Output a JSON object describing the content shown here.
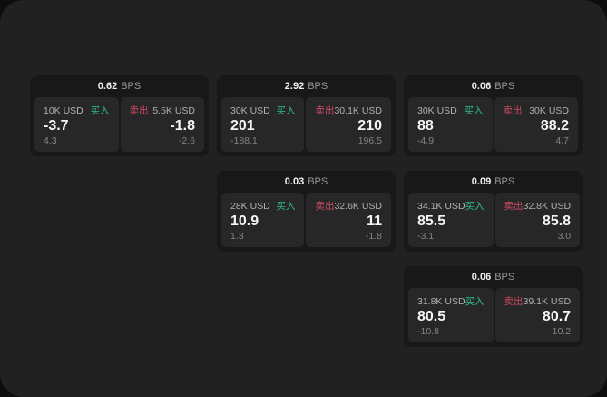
{
  "labels": {
    "unit": "BPS",
    "buy": "买入",
    "sell": "卖出"
  },
  "colors": {
    "buy_green": "#2ebd85",
    "sell_red": "#cf4b63",
    "panel_bg": "#212121",
    "card_bg": "#181818",
    "tile_bg": "#272727"
  },
  "cards": [
    {
      "bps": "0.62",
      "buy": {
        "amount": "10K USD",
        "value": "-3.7",
        "sub": "4.3"
      },
      "sell": {
        "amount": "5.5K USD",
        "value": "-1.8",
        "sub": "-2.6"
      }
    },
    {
      "bps": "2.92",
      "buy": {
        "amount": "30K USD",
        "value": "201",
        "sub": "-188.1"
      },
      "sell": {
        "amount": "30.1K USD",
        "value": "210",
        "sub": "196.5"
      }
    },
    {
      "bps": "0.06",
      "buy": {
        "amount": "30K USD",
        "value": "88",
        "sub": "-4.9"
      },
      "sell": {
        "amount": "30K USD",
        "value": "88.2",
        "sub": "4.7"
      }
    },
    {
      "bps": "0.03",
      "buy": {
        "amount": "28K USD",
        "value": "10.9",
        "sub": "1.3"
      },
      "sell": {
        "amount": "32.6K USD",
        "value": "11",
        "sub": "-1.8"
      }
    },
    {
      "bps": "0.09",
      "buy": {
        "amount": "34.1K USD",
        "value": "85.5",
        "sub": "-3.1"
      },
      "sell": {
        "amount": "32.8K USD",
        "value": "85.8",
        "sub": "3.0"
      }
    },
    {
      "bps": "0.06",
      "buy": {
        "amount": "31.8K USD",
        "value": "80.5",
        "sub": "-10.8"
      },
      "sell": {
        "amount": "39.1K USD",
        "value": "80.7",
        "sub": "10.2"
      }
    }
  ]
}
